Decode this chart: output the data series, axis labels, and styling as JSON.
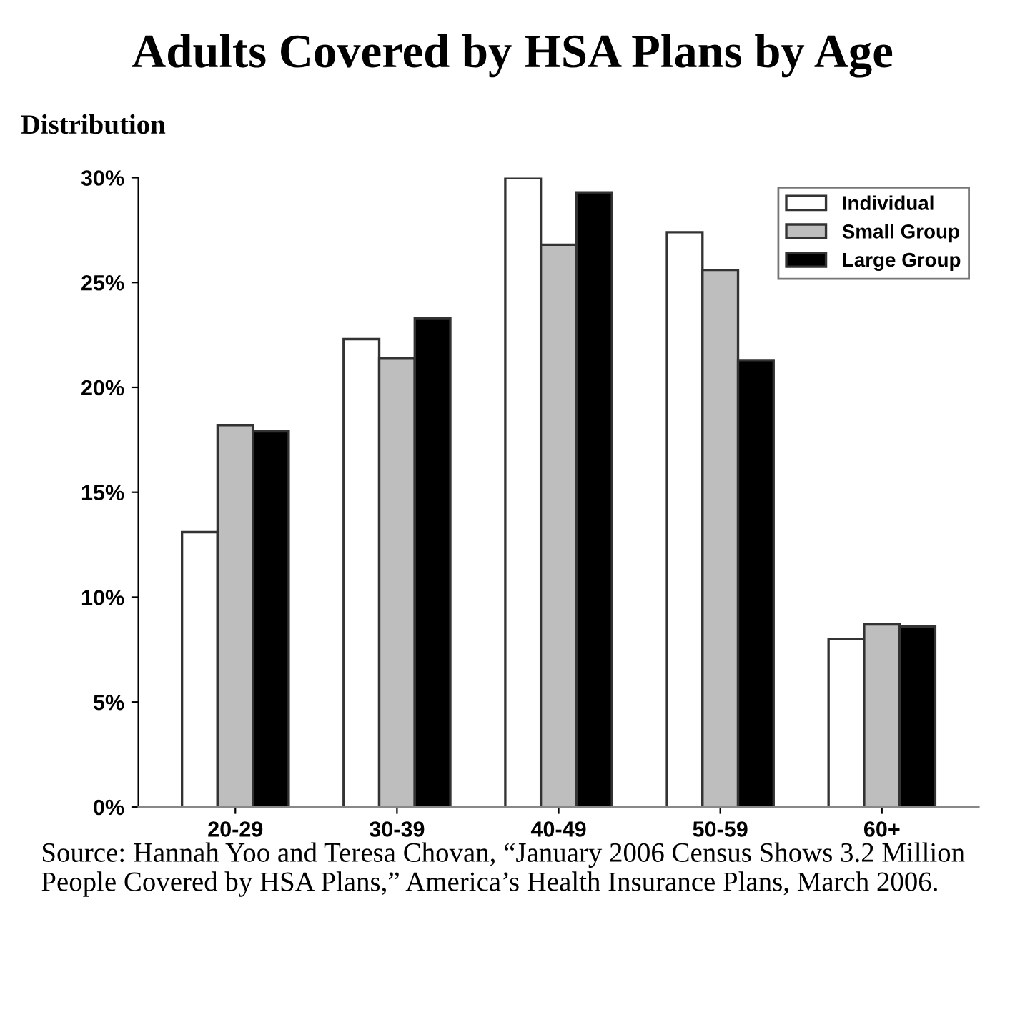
{
  "chart_data": {
    "type": "bar",
    "title": "Adults Covered by HSA Plans by Age",
    "ylabel": "Distribution",
    "categories": [
      "20-29",
      "30-39",
      "40-49",
      "50-59",
      "60+"
    ],
    "series": [
      {
        "name": "Individual",
        "color": "#ffffff",
        "values": [
          13.1,
          22.3,
          30.0,
          27.4,
          8.0
        ]
      },
      {
        "name": "Small Group",
        "color": "#bebebe",
        "values": [
          18.2,
          21.4,
          26.8,
          25.6,
          8.7
        ]
      },
      {
        "name": "Large Group",
        "color": "#000000",
        "values": [
          17.9,
          23.3,
          29.3,
          21.3,
          8.6
        ]
      }
    ],
    "ylim": [
      0,
      30
    ],
    "yticks": [
      {
        "value": 0,
        "label": "0%"
      },
      {
        "value": 5,
        "label": "5%"
      },
      {
        "value": 10,
        "label": "10%"
      },
      {
        "value": 15,
        "label": "15%"
      },
      {
        "value": 20,
        "label": "20%"
      },
      {
        "value": 25,
        "label": "25%"
      },
      {
        "value": 30,
        "label": "30%"
      }
    ],
    "grid": false,
    "legend": "top right",
    "annotations": [
      "Source: Hannah Yoo and Teresa Chovan, “January 2006 Census Shows 3.2 Million People Covered by HSA Plans,” America’s Health Insurance Plans, March 2006."
    ]
  }
}
